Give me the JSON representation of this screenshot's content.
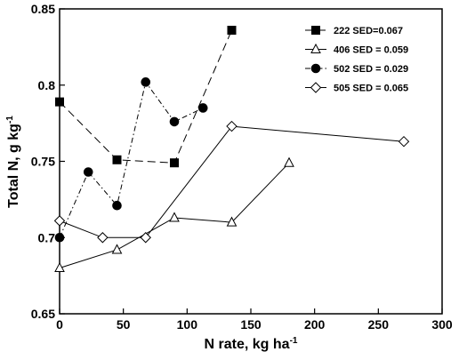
{
  "chart_data": {
    "type": "line",
    "xlabel_main": "N rate, kg ha",
    "xlabel_sup": "-1",
    "ylabel_main": "Total N, g kg",
    "ylabel_sup": "-1",
    "xlim": [
      0,
      300
    ],
    "ylim": [
      0.65,
      0.85
    ],
    "xticks": [
      0,
      50,
      100,
      150,
      200,
      250,
      300
    ],
    "yticks": [
      0.65,
      0.7,
      0.75,
      0.8,
      0.85
    ],
    "xtick_labels": [
      "0",
      "50",
      "100",
      "150",
      "200",
      "250",
      "300"
    ],
    "ytick_labels": [
      "0.65",
      "0.7",
      "0.75",
      "0.8",
      "0.85"
    ],
    "grid": false,
    "legend_position": "top-right",
    "series": [
      {
        "name": "222 SED=0.067",
        "marker": "square-filled",
        "dash": "long-dash",
        "x": [
          0,
          45,
          90,
          135
        ],
        "y": [
          0.789,
          0.751,
          0.749,
          0.836
        ]
      },
      {
        "name": "406 SED = 0.059",
        "marker": "triangle-open",
        "dash": "solid",
        "x": [
          0,
          45,
          90,
          135,
          180
        ],
        "y": [
          0.68,
          0.692,
          0.713,
          0.71,
          0.749
        ]
      },
      {
        "name": "502 SED = 0.029",
        "marker": "circle-filled",
        "dash": "dash-dot",
        "x": [
          0,
          22.5,
          45,
          67.5,
          90,
          112.5
        ],
        "y": [
          0.7,
          0.743,
          0.721,
          0.802,
          0.776,
          0.785
        ]
      },
      {
        "name": "505 SED = 0.065",
        "marker": "diamond-open",
        "dash": "solid",
        "x": [
          0,
          33.75,
          67.5,
          135,
          270
        ],
        "y": [
          0.711,
          0.7,
          0.7,
          0.773,
          0.763
        ]
      }
    ]
  }
}
